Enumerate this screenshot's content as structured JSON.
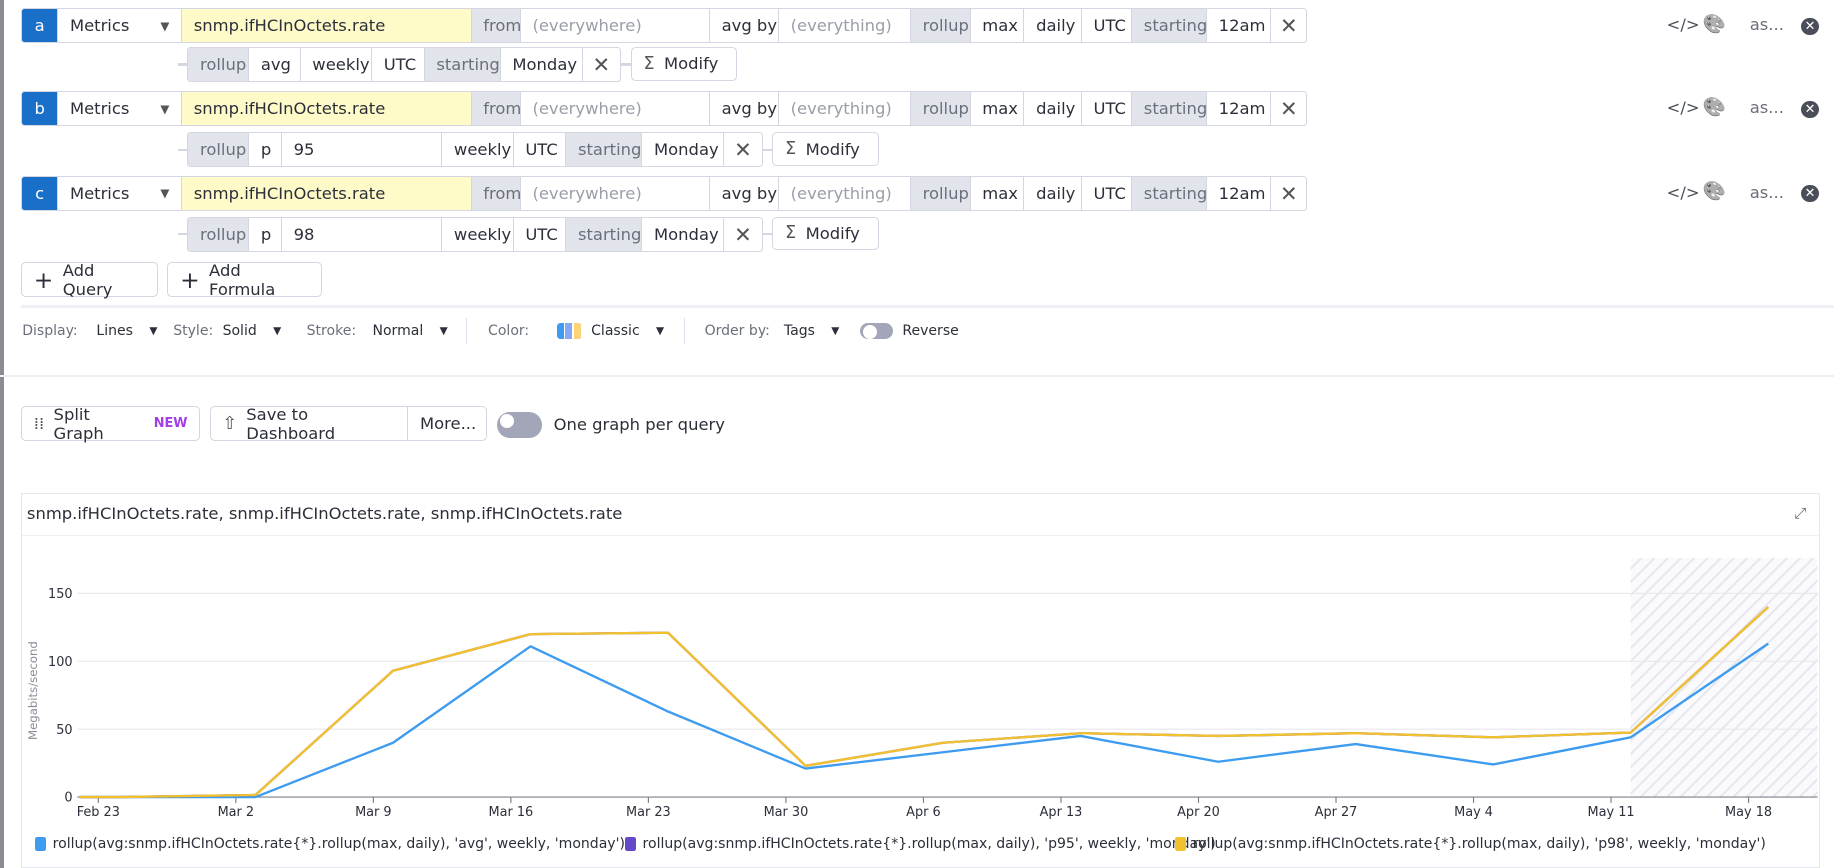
{
  "queries": [
    {
      "letter": "a",
      "source": "Metrics",
      "metric": "snmp.ifHCInOctets.rate",
      "from_label": "from",
      "from_placeholder": "(everywhere)",
      "avgby_label": "avg by",
      "avgby_placeholder": "(everything)",
      "rollup_label": "rollup",
      "rollup_fn": "max",
      "rollup_period": "daily",
      "tz": "UTC",
      "starting_label": "starting",
      "starting_value": "12am",
      "function": {
        "label": "rollup",
        "method": "avg",
        "percentile": "",
        "period": "weekly",
        "tz": "UTC",
        "starting_label": "starting",
        "starting_value": "Monday",
        "modify_label": "Modify"
      },
      "alias": "as..."
    },
    {
      "letter": "b",
      "source": "Metrics",
      "metric": "snmp.ifHCInOctets.rate",
      "from_label": "from",
      "from_placeholder": "(everywhere)",
      "avgby_label": "avg by",
      "avgby_placeholder": "(everything)",
      "rollup_label": "rollup",
      "rollup_fn": "max",
      "rollup_period": "daily",
      "tz": "UTC",
      "starting_label": "starting",
      "starting_value": "12am",
      "function": {
        "label": "rollup",
        "method": "p",
        "percentile": "95",
        "period": "weekly",
        "tz": "UTC",
        "starting_label": "starting",
        "starting_value": "Monday",
        "modify_label": "Modify"
      },
      "alias": "as..."
    },
    {
      "letter": "c",
      "source": "Metrics",
      "metric": "snmp.ifHCInOctets.rate",
      "from_label": "from",
      "from_placeholder": "(everywhere)",
      "avgby_label": "avg by",
      "avgby_placeholder": "(everything)",
      "rollup_label": "rollup",
      "rollup_fn": "max",
      "rollup_period": "daily",
      "tz": "UTC",
      "starting_label": "starting",
      "starting_value": "12am",
      "function": {
        "label": "rollup",
        "method": "p",
        "percentile": "98",
        "period": "weekly",
        "tz": "UTC",
        "starting_label": "starting",
        "starting_value": "Monday",
        "modify_label": "Modify"
      },
      "alias": "as..."
    }
  ],
  "actions": {
    "add_query": "Add Query",
    "add_formula": "Add Formula"
  },
  "options": {
    "display_label": "Display:",
    "display_value": "Lines",
    "style_label": "Style:",
    "style_value": "Solid",
    "stroke_label": "Stroke:",
    "stroke_value": "Normal",
    "color_label": "Color:",
    "color_value": "Classic",
    "palette": [
      "#3d9bf0",
      "#84a9f5",
      "#fbd47a"
    ],
    "order_label": "Order by:",
    "order_value": "Tags",
    "reverse_label": "Reverse",
    "reverse_on": false
  },
  "toolbar": {
    "split_graph": "Split Graph",
    "new_badge": "NEW",
    "save_dashboard": "Save to Dashboard",
    "more": "More...",
    "one_graph_label": "One graph per query",
    "one_graph_on": false
  },
  "graph": {
    "title": "snmp.ifHCInOctets.rate, snmp.ifHCInOctets.rate, snmp.ifHCInOctets.rate"
  },
  "chart_data": {
    "type": "line",
    "ylabel": "Megabits/second",
    "ylim": [
      0,
      176
    ],
    "yticks": [
      0,
      50,
      100,
      150
    ],
    "xticks": [
      "Feb 23",
      "Mar 2",
      "Mar 9",
      "Mar 16",
      "Mar 23",
      "Mar 30",
      "Apr 6",
      "Apr 13",
      "Apr 20",
      "Apr 27",
      "May 4",
      "May 11",
      "May 18"
    ],
    "grid": true,
    "partial_period_start": "May 12",
    "x": [
      "Feb 24",
      "Mar 3",
      "Mar 10",
      "Mar 17",
      "Mar 24",
      "Mar 31",
      "Apr 7",
      "Apr 14",
      "Apr 21",
      "Apr 28",
      "May 5",
      "May 12",
      "May 19"
    ],
    "series": [
      {
        "name": "rollup(avg:snmp.ifHCInOctets.rate{*}.rollup(max, daily), 'avg', weekly, 'monday')",
        "color": "#3d9bf0",
        "values": [
          0,
          0,
          40,
          111,
          63,
          21,
          33,
          45,
          26,
          39,
          24,
          44,
          113
        ]
      },
      {
        "name": "rollup(avg:snmp.ifHCInOctets.rate{*}.rollup(max, daily), 'p95', weekly, 'monday')",
        "color": "#6449c9",
        "values": [
          0,
          1.5,
          93,
          120,
          121,
          23,
          40,
          47,
          45,
          47,
          44,
          47.5,
          140
        ]
      },
      {
        "name": "rollup(avg:snmp.ifHCInOctets.rate{*}.rollup(max, daily), 'p98', weekly, 'monday')",
        "color": "#f2c12e",
        "values": [
          0,
          1.5,
          93,
          120,
          121,
          23,
          40,
          47,
          45,
          47,
          44,
          47.5,
          140
        ]
      }
    ],
    "legend": "bottom"
  }
}
